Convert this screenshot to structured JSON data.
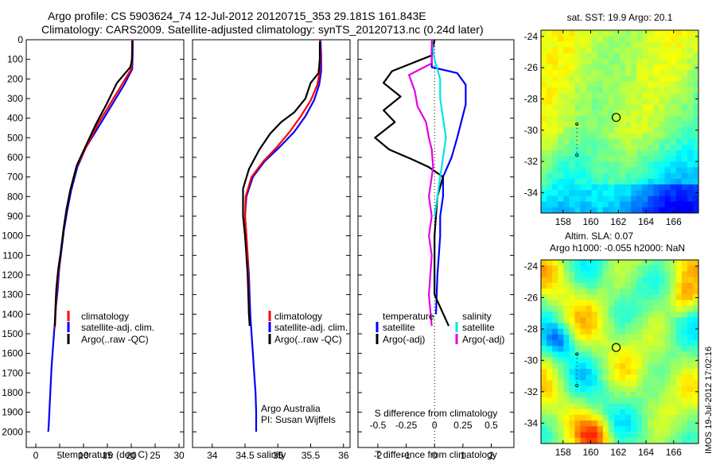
{
  "header": {
    "title_line1": "Argo profile: CS 5903624_74 12-Jul-2012 20120715_353 29.181S 161.843E",
    "title_line2": "Climatology: CARS2009. Satellite-adjusted climatology: synTS_20120713.nc (0.24d later)"
  },
  "credit": {
    "line1": "Argo Australia",
    "line2": "PI: Susan Wijffels"
  },
  "stamp": "IMOS 19-Jul-2012 17:02:16",
  "colors": {
    "climatology": "#ff0000",
    "satellite": "#0000ff",
    "argo": "#000000",
    "sal_satellite": "#00e5e5",
    "sal_argo": "#e500e5"
  },
  "chart_data": [
    {
      "type": "line",
      "panel": "temperature",
      "xlabel": "temperature (deg C)",
      "xlim": [
        -2,
        31
      ],
      "ylim": [
        2080,
        0
      ],
      "xticks": [
        "0",
        "5",
        "10",
        "15",
        "20",
        "25",
        "30"
      ],
      "xtick_values": [
        0,
        5,
        10,
        15,
        20,
        25,
        30
      ],
      "yticks": [
        "0",
        "100",
        "200",
        "300",
        "400",
        "500",
        "600",
        "700",
        "800",
        "900",
        "1000",
        "1100",
        "1200",
        "1300",
        "1400",
        "1500",
        "1600",
        "1700",
        "1800",
        "1900",
        "2000"
      ],
      "ytick_values": [
        0,
        100,
        200,
        300,
        400,
        500,
        600,
        700,
        800,
        900,
        1000,
        1100,
        1200,
        1300,
        1400,
        1500,
        1600,
        1700,
        1800,
        1900,
        2000
      ],
      "legend": [
        "climatology",
        "satellite-adj. clim.",
        "Argo(..raw -QC)"
      ],
      "series": [
        {
          "name": "satellite-adj. clim.",
          "color": "#0000ff",
          "x": [
            20.3,
            20.3,
            20.2,
            18.5,
            16.0,
            13.5,
            10.5,
            8.7,
            7.4,
            6.6,
            5.9,
            5.4,
            4.9,
            4.6,
            4.2,
            3.9,
            3.6,
            3.3,
            3.1,
            2.9,
            2.7,
            2.6
          ],
          "y": [
            0,
            50,
            150,
            230,
            330,
            430,
            550,
            650,
            770,
            870,
            970,
            1070,
            1170,
            1270,
            1370,
            1470,
            1570,
            1670,
            1770,
            1870,
            1970,
            2000
          ]
        },
        {
          "name": "climatology",
          "color": "#ff0000",
          "x": [
            20.2,
            20.2,
            20.0,
            18.0,
            15.5,
            13.0,
            10.5,
            8.5,
            7.2,
            6.4,
            5.8,
            5.3,
            4.8,
            4.4,
            4.2,
            4.0
          ],
          "y": [
            0,
            50,
            150,
            230,
            330,
            430,
            550,
            650,
            770,
            870,
            970,
            1070,
            1170,
            1270,
            1370,
            1470
          ]
        },
        {
          "name": "Argo(..raw -QC)",
          "color": "#000000",
          "x": [
            20.2,
            20.2,
            19.8,
            17.0,
            14.8,
            12.6,
            10.5,
            8.6,
            7.2,
            6.4,
            5.8,
            5.3,
            4.7,
            4.3,
            4.1,
            4.0
          ],
          "y": [
            5,
            100,
            140,
            220,
            330,
            430,
            540,
            640,
            770,
            870,
            970,
            1070,
            1170,
            1270,
            1370,
            1460
          ]
        }
      ]
    },
    {
      "type": "line",
      "panel": "salinity",
      "xlabel": "salinity",
      "xlim": [
        33.7,
        36.1
      ],
      "ylim": [
        2080,
        0
      ],
      "xticks": [
        "34",
        "34.5",
        "35",
        "35.5",
        "36"
      ],
      "xtick_values": [
        34,
        34.5,
        35,
        35.5,
        36
      ],
      "legend": [
        "climatology",
        "satellite-adj. clim.",
        "Argo(..raw -QC)"
      ],
      "series": [
        {
          "name": "satellite-adj. clim.",
          "color": "#0000ff",
          "x": [
            35.65,
            35.66,
            35.66,
            35.63,
            35.55,
            35.42,
            35.25,
            35.02,
            34.8,
            34.62,
            34.52,
            34.5,
            34.52,
            34.54,
            34.56,
            34.58,
            34.6,
            34.62,
            34.64,
            34.66,
            34.67,
            34.67
          ],
          "y": [
            0,
            80,
            160,
            230,
            310,
            390,
            470,
            550,
            620,
            700,
            800,
            900,
            1000,
            1100,
            1200,
            1400,
            1500,
            1600,
            1700,
            1800,
            1900,
            2000
          ]
        },
        {
          "name": "climatology",
          "color": "#ff0000",
          "x": [
            35.64,
            35.65,
            35.64,
            35.6,
            35.5,
            35.35,
            35.18,
            34.98,
            34.78,
            34.6,
            34.51,
            34.5,
            34.52,
            34.54,
            34.55,
            34.56
          ],
          "y": [
            0,
            80,
            160,
            230,
            310,
            390,
            470,
            550,
            620,
            700,
            800,
            900,
            1000,
            1100,
            1200,
            1400
          ]
        },
        {
          "name": "Argo(..raw -QC)",
          "color": "#000000",
          "x": [
            35.64,
            35.64,
            35.62,
            35.5,
            35.42,
            35.25,
            35.05,
            34.88,
            34.72,
            34.56,
            34.47,
            34.47,
            34.5,
            34.52,
            34.54,
            34.56,
            34.57
          ],
          "y": [
            10,
            100,
            170,
            220,
            300,
            370,
            420,
            480,
            560,
            660,
            760,
            900,
            1000,
            1100,
            1200,
            1400,
            1460
          ]
        }
      ]
    },
    {
      "type": "line",
      "panel": "difference",
      "xlabel": "T difference from climatology",
      "xlabel_top": "S difference from climatology",
      "xlim": [
        -2.7,
        2.8
      ],
      "ylim": [
        2080,
        0
      ],
      "xticks": [
        "-2",
        "-1",
        "0",
        "1",
        "2"
      ],
      "xtick_values": [
        -2,
        -1,
        0,
        1,
        2
      ],
      "s_xticks": [
        "-0.5",
        "-0.25",
        "0",
        "0.25",
        "0.5"
      ],
      "s_xtick_values": [
        -2,
        -1,
        0,
        1,
        2
      ],
      "legend_temperature_title": "temperature",
      "legend_salinity_title": "salinity",
      "legend_temperature": [
        "satellite",
        "Argo(-adj)"
      ],
      "legend_salinity": [
        "satellite",
        "Argo(-adj)"
      ],
      "series": [
        {
          "name": "T satellite",
          "color": "#0000ff",
          "x": [
            0.0,
            -0.1,
            -0.1,
            0.8,
            1.1,
            1.1,
            0.8,
            0.6,
            0.3,
            0.3,
            0.2,
            0.2,
            0.15,
            0.1,
            0.05
          ],
          "y": [
            0,
            50,
            140,
            170,
            230,
            330,
            500,
            600,
            700,
            800,
            900,
            1000,
            1100,
            1200,
            1400
          ]
        },
        {
          "name": "T Argo(-adj)",
          "color": "#000000",
          "x": [
            0.0,
            -0.1,
            -1.5,
            -1.8,
            -1.2,
            -1.8,
            -1.4,
            -2.1,
            -1.6,
            -0.8,
            -0.2,
            0.3,
            0.1,
            0.0,
            0.0,
            0.5
          ],
          "y": [
            0,
            80,
            160,
            220,
            290,
            360,
            420,
            500,
            560,
            610,
            650,
            700,
            800,
            1000,
            1300,
            1460
          ]
        },
        {
          "name": "S satellite",
          "color": "#00e5e5",
          "x": [
            -0.1,
            0.0,
            0.2,
            0.2,
            0.3,
            0.4,
            0.3,
            0.2,
            0.1,
            0.0
          ],
          "y": [
            0,
            100,
            200,
            300,
            400,
            500,
            600,
            700,
            800,
            900
          ]
        },
        {
          "name": "S Argo(-adj)",
          "color": "#e500e5",
          "x": [
            -0.1,
            -0.1,
            -0.9,
            -0.7,
            -0.6,
            -0.3,
            -0.2,
            -0.1,
            -0.05,
            -0.2,
            -0.1,
            -0.2,
            -0.1,
            -0.2,
            -0.1
          ],
          "y": [
            0,
            120,
            180,
            260,
            340,
            420,
            500,
            560,
            650,
            800,
            900,
            1000,
            1100,
            1300,
            1460
          ]
        }
      ]
    },
    {
      "type": "heatmap",
      "panel": "sst_map",
      "title": "sat. SST: 19.9 Argo: 20.1",
      "xlim": [
        156.4,
        167.8
      ],
      "ylim": [
        -35.3,
        -23.6
      ],
      "xticks": [
        "158",
        "160",
        "162",
        "164",
        "166"
      ],
      "yticks": [
        "-24",
        "-26",
        "-28",
        "-30",
        "-32",
        "-34"
      ],
      "argo_position": {
        "lon": 161.843,
        "lat": -29.181
      },
      "track": [
        {
          "lon": 159.0,
          "lat": -29.6
        },
        {
          "lon": 159.0,
          "lat": -31.6
        }
      ]
    },
    {
      "type": "heatmap",
      "panel": "sla_map",
      "title_line1": "Altim. SLA: 0.07",
      "title_line2": "Argo h1000: -0.055 h2000: NaN",
      "xlim": [
        156.4,
        167.8
      ],
      "ylim": [
        -35.3,
        -23.6
      ],
      "xticks": [
        "158",
        "160",
        "162",
        "164",
        "166"
      ],
      "yticks": [
        "-24",
        "-26",
        "-28",
        "-30",
        "-32",
        "-34"
      ],
      "argo_position": {
        "lon": 161.843,
        "lat": -29.181
      },
      "track": [
        {
          "lon": 159.0,
          "lat": -29.6
        },
        {
          "lon": 159.0,
          "lat": -31.6
        }
      ]
    }
  ]
}
